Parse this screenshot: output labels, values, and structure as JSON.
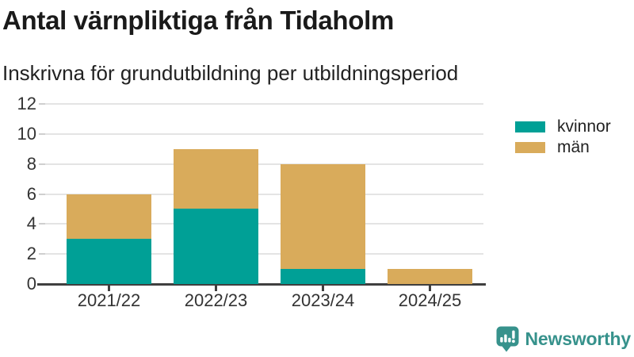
{
  "header": {
    "title": "Antal värnpliktiga från Tidaholm",
    "subtitle": "Inskrivna för grundutbildning per utbildningsperiod"
  },
  "chart_data": {
    "type": "bar",
    "stacked": true,
    "title": "Antal värnpliktiga från Tidaholm",
    "subtitle": "Inskrivna för grundutbildning per utbildningsperiod",
    "categories": [
      "2021/22",
      "2022/23",
      "2023/24",
      "2024/25"
    ],
    "series": [
      {
        "name": "kvinnor",
        "color": "#00a096",
        "values": [
          3,
          5,
          1,
          0
        ]
      },
      {
        "name": "män",
        "color": "#d9ab5b",
        "values": [
          3,
          4,
          7,
          1
        ]
      }
    ],
    "totals": [
      6,
      9,
      8,
      1
    ],
    "xlabel": "",
    "ylabel": "",
    "ylim": [
      0,
      12
    ],
    "yticks": [
      0,
      2,
      4,
      6,
      8,
      10,
      12
    ],
    "grid": true,
    "legend_position": "top-right"
  },
  "legend": {
    "items": [
      {
        "label": "kvinnor",
        "color": "#00a096"
      },
      {
        "label": "män",
        "color": "#d9ab5b"
      }
    ]
  },
  "branding": {
    "logo_text": "Newsworthy",
    "logo_icon": "bar-chart-speech-bubble-icon",
    "color": "#37928c"
  }
}
